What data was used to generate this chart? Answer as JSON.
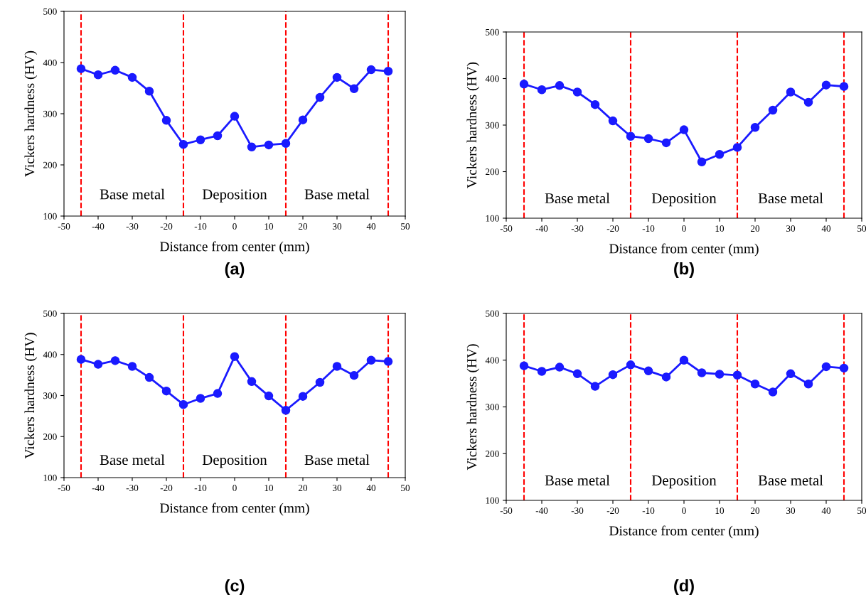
{
  "chart_data": [
    {
      "type": "line",
      "title": "(a)",
      "xlabel": "Distance from center (mm)",
      "ylabel": "Vickers hardness (HV)",
      "x": [
        -45,
        -40,
        -35,
        -30,
        -25,
        -20,
        -15,
        -10,
        -5,
        0,
        5,
        10,
        15,
        20,
        25,
        30,
        35,
        40,
        45
      ],
      "series": [
        {
          "color": "#1a1aff",
          "values": [
            388,
            376,
            385,
            371,
            344,
            287,
            240,
            249,
            257,
            295,
            235,
            239,
            242,
            288,
            332,
            371,
            349,
            386,
            383
          ]
        }
      ],
      "xlim": [
        -50,
        50
      ],
      "xticks": [
        -50,
        -40,
        -30,
        -20,
        -10,
        0,
        10,
        20,
        30,
        40,
        50
      ],
      "ylim": [
        100,
        500
      ],
      "yticks": [
        100,
        200,
        300,
        400,
        500
      ],
      "marker": "circle",
      "line_style": "solid",
      "ref_lines": [
        {
          "axis": "x",
          "value": -45,
          "color": "#ff0000",
          "line_style": "dashed"
        },
        {
          "axis": "x",
          "value": -15,
          "color": "#ff0000",
          "line_style": "dashed"
        },
        {
          "axis": "x",
          "value": 15,
          "color": "#ff0000",
          "line_style": "dashed"
        },
        {
          "axis": "x",
          "value": 45,
          "color": "#ff0000",
          "line_style": "dashed"
        }
      ],
      "annotations": [
        "Base metal",
        "Deposition",
        "Base metal"
      ]
    },
    {
      "type": "line",
      "title": "(b)",
      "xlabel": "Distance from center (mm)",
      "ylabel": "Vickers hardness (HV)",
      "x": [
        -45,
        -40,
        -35,
        -30,
        -25,
        -20,
        -15,
        -10,
        -5,
        0,
        5,
        10,
        15,
        20,
        25,
        30,
        35,
        40,
        45
      ],
      "series": [
        {
          "color": "#1a1aff",
          "values": [
            388,
            376,
            385,
            371,
            344,
            309,
            276,
            271,
            262,
            290,
            221,
            237,
            252,
            295,
            332,
            371,
            349,
            386,
            383
          ]
        }
      ],
      "xlim": [
        -50,
        50
      ],
      "xticks": [
        -50,
        -40,
        -30,
        -20,
        -10,
        0,
        10,
        20,
        30,
        40,
        50
      ],
      "ylim": [
        100,
        500
      ],
      "yticks": [
        100,
        200,
        300,
        400,
        500
      ],
      "marker": "circle",
      "line_style": "solid",
      "ref_lines": [
        {
          "axis": "x",
          "value": -45,
          "color": "#ff0000",
          "line_style": "dashed"
        },
        {
          "axis": "x",
          "value": -15,
          "color": "#ff0000",
          "line_style": "dashed"
        },
        {
          "axis": "x",
          "value": 15,
          "color": "#ff0000",
          "line_style": "dashed"
        },
        {
          "axis": "x",
          "value": 45,
          "color": "#ff0000",
          "line_style": "dashed"
        }
      ],
      "annotations": [
        "Base metal",
        "Deposition",
        "Base metal"
      ]
    },
    {
      "type": "line",
      "title": "(c)",
      "xlabel": "Distance from center (mm)",
      "ylabel": "Vickers hardness (HV)",
      "x": [
        -45,
        -40,
        -35,
        -30,
        -25,
        -20,
        -15,
        -10,
        -5,
        0,
        5,
        10,
        15,
        20,
        25,
        30,
        35,
        40,
        45
      ],
      "series": [
        {
          "color": "#1a1aff",
          "values": [
            388,
            376,
            385,
            371,
            344,
            311,
            278,
            293,
            305,
            395,
            334,
            299,
            264,
            298,
            332,
            371,
            349,
            386,
            383
          ]
        }
      ],
      "xlim": [
        -50,
        50
      ],
      "xticks": [
        -50,
        -40,
        -30,
        -20,
        -10,
        0,
        10,
        20,
        30,
        40,
        50
      ],
      "ylim": [
        100,
        500
      ],
      "yticks": [
        100,
        200,
        300,
        400,
        500
      ],
      "marker": "circle",
      "line_style": "solid",
      "ref_lines": [
        {
          "axis": "x",
          "value": -45,
          "color": "#ff0000",
          "line_style": "dashed"
        },
        {
          "axis": "x",
          "value": -15,
          "color": "#ff0000",
          "line_style": "dashed"
        },
        {
          "axis": "x",
          "value": 15,
          "color": "#ff0000",
          "line_style": "dashed"
        },
        {
          "axis": "x",
          "value": 45,
          "color": "#ff0000",
          "line_style": "dashed"
        }
      ],
      "annotations": [
        "Base metal",
        "Deposition",
        "Base metal"
      ]
    },
    {
      "type": "line",
      "title": "(d)",
      "xlabel": "Distance from center (mm)",
      "ylabel": "Vickers hardness (HV)",
      "x": [
        -45,
        -40,
        -35,
        -30,
        -25,
        -20,
        -15,
        -10,
        -5,
        0,
        5,
        10,
        15,
        20,
        25,
        30,
        35,
        40,
        45
      ],
      "series": [
        {
          "color": "#1a1aff",
          "values": [
            388,
            376,
            385,
            371,
            344,
            369,
            390,
            377,
            364,
            400,
            373,
            370,
            368,
            349,
            332,
            371,
            349,
            386,
            383
          ]
        }
      ],
      "xlim": [
        -50,
        50
      ],
      "xticks": [
        -50,
        -40,
        -30,
        -20,
        -10,
        0,
        10,
        20,
        30,
        40,
        50
      ],
      "ylim": [
        100,
        500
      ],
      "yticks": [
        100,
        200,
        300,
        400,
        500
      ],
      "marker": "circle",
      "line_style": "solid",
      "ref_lines": [
        {
          "axis": "x",
          "value": -45,
          "color": "#ff0000",
          "line_style": "dashed"
        },
        {
          "axis": "x",
          "value": -15,
          "color": "#ff0000",
          "line_style": "dashed"
        },
        {
          "axis": "x",
          "value": 15,
          "color": "#ff0000",
          "line_style": "dashed"
        },
        {
          "axis": "x",
          "value": 45,
          "color": "#ff0000",
          "line_style": "dashed"
        }
      ],
      "annotations": [
        "Base metal",
        "Deposition",
        "Base metal"
      ]
    }
  ]
}
